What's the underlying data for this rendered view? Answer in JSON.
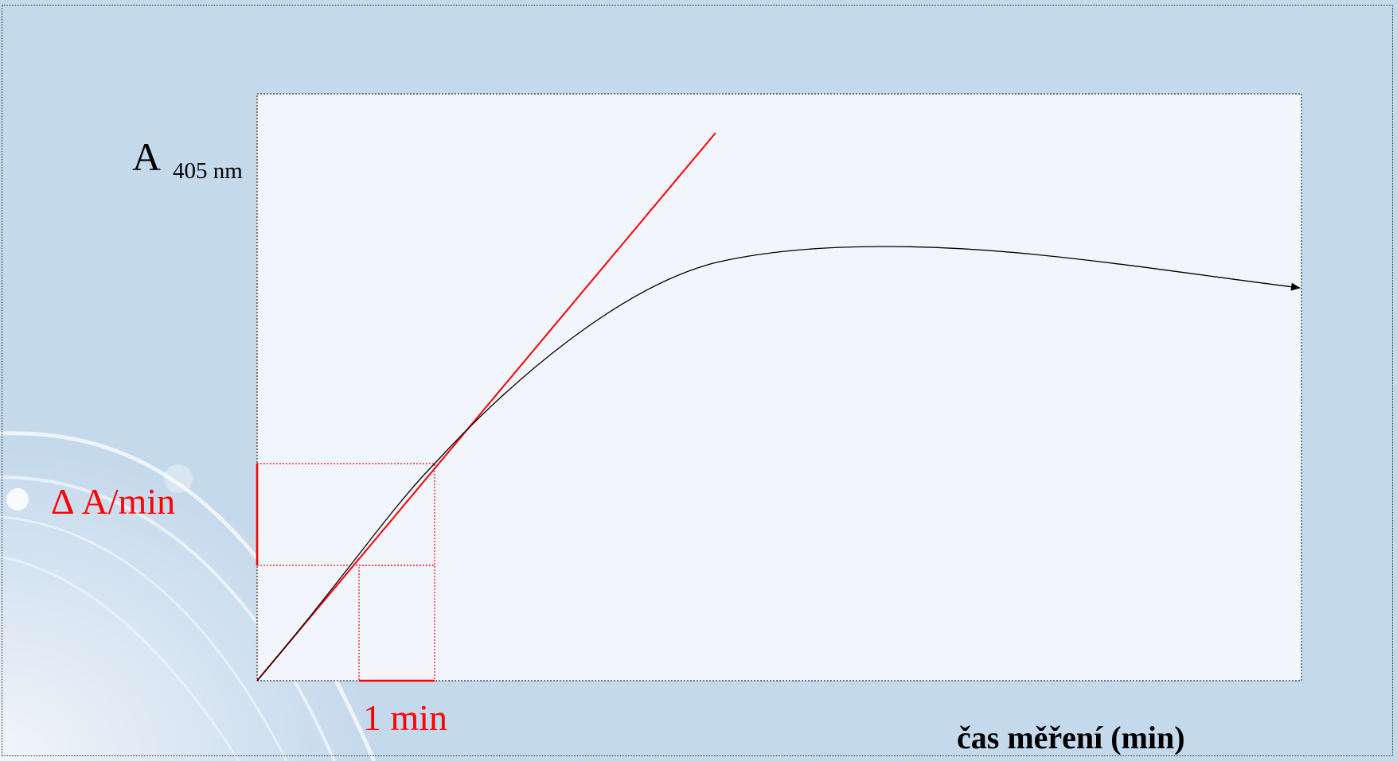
{
  "diagram": {
    "y_axis_label": "A",
    "y_axis_subscript": "405 nm",
    "x_axis_label": "čas měření (min)",
    "slope_label": "Δ A/min",
    "interval_label": "1 min"
  },
  "colors": {
    "background": "#c5d9ec",
    "plot_area": "#f2f5fc",
    "highlight": "#ff0000",
    "curve": "#000000"
  }
}
